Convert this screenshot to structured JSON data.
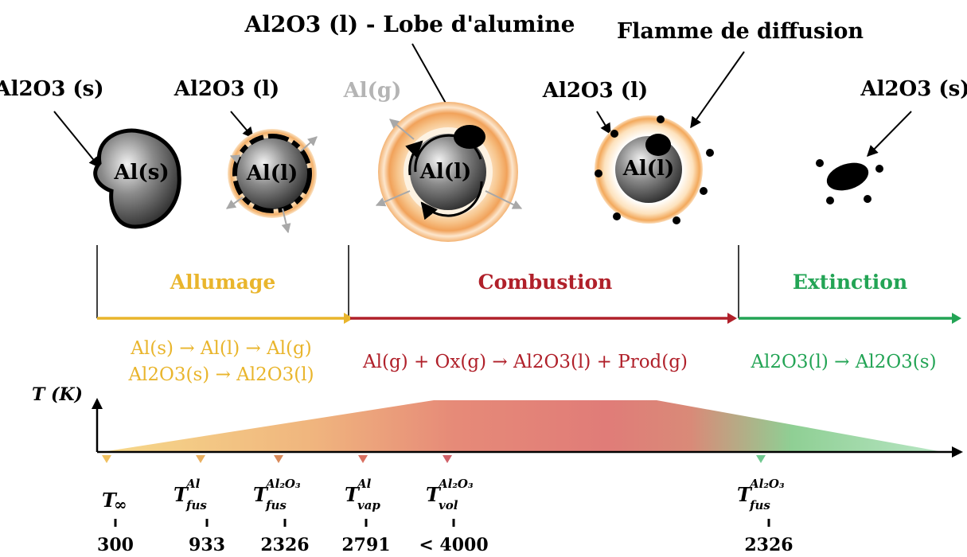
{
  "labels": {
    "top_center": "Al2O3 (l) - Lobe d'alumine",
    "flame": "Flamme de diffusion",
    "oxide_solid_left": "Al2O3 (s)",
    "oxide_liquid_2": "Al2O3 (l)",
    "al_gas": "Al(g)",
    "oxide_liquid_4": "Al2O3 (l)",
    "oxide_solid_right": "Al2O3 (s)"
  },
  "particles": [
    {
      "core": "Al(s)"
    },
    {
      "core": "Al(l)"
    },
    {
      "core": "Al(l)"
    },
    {
      "core": "Al(l)"
    }
  ],
  "phases": [
    {
      "name": "Allumage",
      "color": "#e9b52c"
    },
    {
      "name": "Combustion",
      "color": "#b0202a"
    },
    {
      "name": "Extinction",
      "color": "#23a455"
    }
  ],
  "reactions": {
    "allumage_1": "Al(s) → Al(l) → Al(g)",
    "allumage_2": "Al2O3(s) → Al2O3(l)",
    "combustion": "Al(g) + Ox(g) → Al2O3(l) + Prod(g)",
    "extinction": "Al2O3(l) → Al2O3(s)"
  },
  "temperature_axis": {
    "label": "T (K)",
    "markers": [
      {
        "symbol": "T∞",
        "value": "300",
        "color": "#f0c060"
      },
      {
        "symbol": "T fus Al",
        "value": "933",
        "color": "#eab060"
      },
      {
        "symbol": "T fus Al2O3",
        "value": "2326",
        "color": "#d98a5a"
      },
      {
        "symbol": "T vap Al",
        "value": "2791",
        "color": "#d97060"
      },
      {
        "symbol": "T vol Al2O3",
        "value": "< 4000",
        "color": "#d06068"
      },
      {
        "symbol": "T fus Al2O3",
        "value": "2326",
        "color": "#70c890"
      }
    ]
  }
}
